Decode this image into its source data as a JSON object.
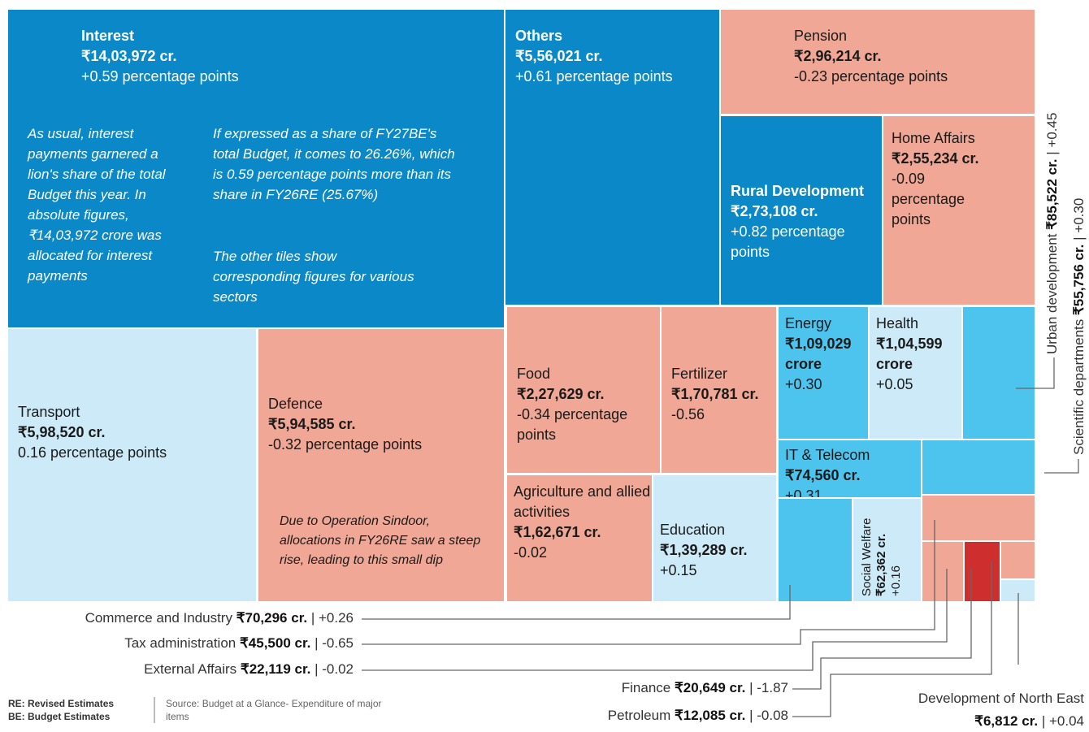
{
  "tiles": [
    {
      "name": "Interest",
      "amount": "₹14,03,972 cr.",
      "change": "+0.59 percentage points",
      "notes": [
        "As usual, interest payments garnered a lion's share of the total Budget this year. In absolute figures, ₹14,03,972 crore was allocated for interest payments",
        "If expressed as a share of FY27BE's total Budget, it comes to 26.26%, which is 0.59 percentage points more than its share in FY26RE (25.67%)",
        "The other tiles show corresponding figures for various sectors"
      ]
    },
    {
      "name": "Others",
      "amount": "₹5,56,021 cr.",
      "change": "+0.61 percentage points"
    },
    {
      "name": "Pension",
      "amount": "₹2,96,214 cr.",
      "change": "-0.23 percentage points"
    },
    {
      "name": "Rural Development",
      "amount": "₹2,73,108 cr.",
      "change": "+0.82 percentage points"
    },
    {
      "name": "Home Affairs",
      "amount": "₹2,55,234 cr.",
      "change": "-0.09 percentage points"
    },
    {
      "name": "Transport",
      "amount": "₹5,98,520 cr.",
      "change": "0.16 percentage points"
    },
    {
      "name": "Defence",
      "amount": "₹5,94,585 cr.",
      "change": "-0.32 percentage points",
      "notes": [
        "Due to Operation Sindoor, allocations in FY26RE saw a steep rise, leading to this small dip"
      ]
    },
    {
      "name": "Food",
      "amount": "₹2,27,629 cr.",
      "change": "-0.34 percentage points"
    },
    {
      "name": "Fertilizer",
      "amount": "₹1,70,781 cr.",
      "change": "-0.56"
    },
    {
      "name": "Agriculture and allied activities",
      "amount": "₹1,62,671 cr.",
      "change": "-0.02"
    },
    {
      "name": "Education",
      "amount": "₹1,39,289 cr.",
      "change": "+0.15"
    },
    {
      "name": "Energy",
      "amount": "₹1,09,029 crore",
      "change": "+0.30"
    },
    {
      "name": "Health",
      "amount": "₹1,04,599 crore",
      "change": "+0.05"
    },
    {
      "name": "IT & Telecom",
      "amount": "₹74,560 cr.",
      "change": "+0.31"
    },
    {
      "name": "Social Welfare",
      "amount": "₹62,362 cr.",
      "change": "+0.16"
    }
  ],
  "separator": "|",
  "callouts": [
    {
      "name": "Urban development",
      "amount": "₹85,522 cr.",
      "change": "+0.45"
    },
    {
      "name": "Scientific departments",
      "amount": "₹55,756 cr.",
      "change": "+0.30"
    },
    {
      "name": "Commerce and Industry",
      "amount": "₹70,296 cr.",
      "change": "+0.26"
    },
    {
      "name": "Tax administration",
      "amount": "₹45,500 cr.",
      "change": "-0.65"
    },
    {
      "name": "External Affairs",
      "amount": "₹22,119 cr.",
      "change": "-0.02"
    },
    {
      "name": "Finance",
      "amount": "₹20,649 cr.",
      "change": "-1.87"
    },
    {
      "name": "Petroleum",
      "amount": "₹12,085 cr.",
      "change": "-0.08"
    },
    {
      "name": "Development of North East",
      "amount": "₹6,812 cr.",
      "change": "+0.04"
    }
  ],
  "footer": {
    "abbreviations": [
      "RE: Revised Estimates",
      "BE: Budget Estimates"
    ],
    "source": "Source: Budget at a Glance- Expenditure of major items"
  }
}
